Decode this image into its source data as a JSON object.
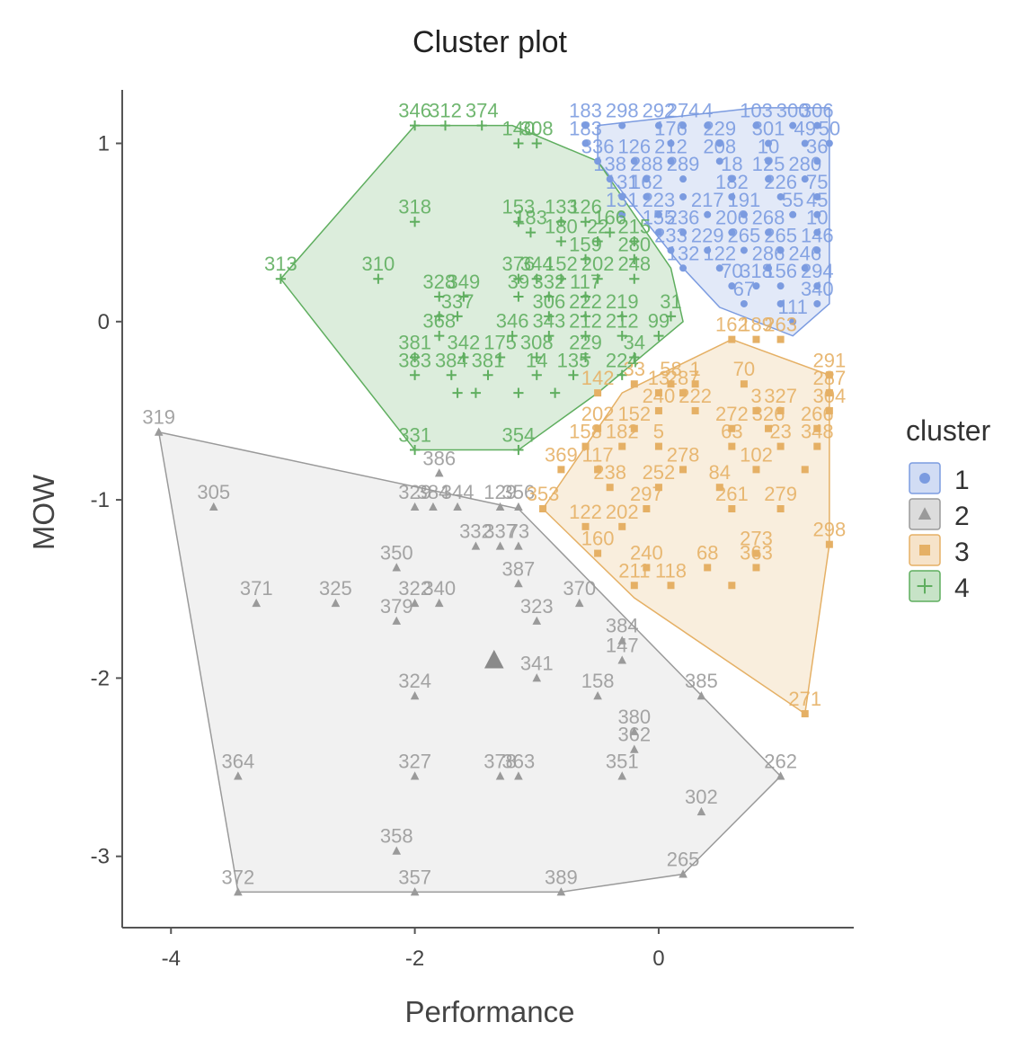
{
  "chart_data": {
    "type": "scatter",
    "title": "Cluster plot",
    "xlabel": "Performance",
    "ylabel": "MOW",
    "xlim": [
      -4.4,
      1.6
    ],
    "ylim": [
      -3.4,
      1.3
    ],
    "x_ticks": [
      "-4",
      "-2",
      "0"
    ],
    "x_tick_values": [
      -4,
      -2,
      0
    ],
    "y_ticks": [
      "1",
      "0",
      "-1",
      "-2",
      "-3"
    ],
    "y_tick_values": [
      1,
      0,
      -1,
      -2,
      -3
    ],
    "grid": false,
    "legend": {
      "title": "cluster",
      "placement": "right",
      "entries": [
        "1",
        "2",
        "3",
        "4"
      ]
    },
    "series": [
      {
        "name": "1",
        "color": "#7B9BE0",
        "marker": "circle",
        "hull": [
          [
            -0.5,
            1.1
          ],
          [
            0.8,
            1.2
          ],
          [
            1.4,
            1.2
          ],
          [
            1.4,
            0.1
          ],
          [
            1.1,
            -0.08
          ],
          [
            0.5,
            0.08
          ],
          [
            0.2,
            0.3
          ],
          [
            -0.5,
            0.9
          ]
        ],
        "points": [
          [
            -0.6,
            1.1,
            "183"
          ],
          [
            -0.3,
            1.1,
            "298"
          ],
          [
            0.0,
            1.1,
            "292"
          ],
          [
            0.2,
            1.1,
            "274"
          ],
          [
            0.4,
            1.1,
            "4"
          ],
          [
            0.8,
            1.1,
            "103"
          ],
          [
            1.1,
            1.1,
            "300"
          ],
          [
            1.3,
            1.1,
            "306"
          ],
          [
            -0.6,
            1.0,
            "183"
          ],
          [
            0.1,
            1.0,
            "176"
          ],
          [
            0.5,
            1.0,
            "229"
          ],
          [
            0.9,
            1.0,
            "301"
          ],
          [
            1.2,
            1.0,
            "49"
          ],
          [
            1.4,
            1.0,
            "50"
          ],
          [
            -0.5,
            0.9,
            "336"
          ],
          [
            -0.2,
            0.9,
            "126"
          ],
          [
            0.1,
            0.9,
            "212"
          ],
          [
            0.5,
            0.9,
            "208"
          ],
          [
            0.9,
            0.9,
            "10"
          ],
          [
            1.3,
            0.9,
            "36"
          ],
          [
            -0.4,
            0.8,
            "138"
          ],
          [
            -0.1,
            0.8,
            "288"
          ],
          [
            0.2,
            0.8,
            "289"
          ],
          [
            0.6,
            0.8,
            "18"
          ],
          [
            0.9,
            0.8,
            "125"
          ],
          [
            1.2,
            0.8,
            "280"
          ],
          [
            -0.3,
            0.7,
            "131"
          ],
          [
            -0.1,
            0.7,
            "162"
          ],
          [
            0.2,
            0.7,
            ""
          ],
          [
            0.6,
            0.7,
            "182"
          ],
          [
            1.0,
            0.7,
            "226"
          ],
          [
            1.3,
            0.7,
            "75"
          ],
          [
            -0.3,
            0.6,
            "131"
          ],
          [
            0.0,
            0.6,
            "223"
          ],
          [
            0.4,
            0.6,
            "217"
          ],
          [
            0.7,
            0.6,
            "191"
          ],
          [
            1.1,
            0.6,
            "55"
          ],
          [
            1.3,
            0.6,
            "45"
          ],
          [
            0.0,
            0.5,
            "155"
          ],
          [
            0.2,
            0.5,
            "236"
          ],
          [
            0.6,
            0.5,
            "206"
          ],
          [
            0.9,
            0.5,
            "268"
          ],
          [
            1.3,
            0.5,
            "10"
          ],
          [
            0.1,
            0.4,
            "233"
          ],
          [
            0.4,
            0.4,
            "229"
          ],
          [
            0.7,
            0.4,
            "265"
          ],
          [
            1.0,
            0.4,
            "265"
          ],
          [
            1.3,
            0.4,
            "146"
          ],
          [
            0.2,
            0.3,
            "132"
          ],
          [
            0.5,
            0.3,
            "122"
          ],
          [
            0.9,
            0.3,
            "286"
          ],
          [
            1.2,
            0.3,
            "246"
          ],
          [
            0.6,
            0.2,
            "70"
          ],
          [
            0.8,
            0.2,
            "318"
          ],
          [
            1.0,
            0.2,
            "156"
          ],
          [
            1.3,
            0.2,
            "294"
          ],
          [
            0.7,
            0.1,
            "67"
          ],
          [
            1.0,
            0.1,
            ""
          ],
          [
            1.3,
            0.1,
            "340"
          ],
          [
            1.1,
            0.0,
            "111"
          ]
        ]
      },
      {
        "name": "2",
        "color": "#9A9A9A",
        "marker": "triangle",
        "centroid": [
          -1.35,
          -1.9
        ],
        "hull": [
          [
            -4.1,
            -0.62
          ],
          [
            -1.15,
            -1.05
          ],
          [
            1.0,
            -2.55
          ],
          [
            0.2,
            -3.1
          ],
          [
            -0.8,
            -3.2
          ],
          [
            -3.45,
            -3.2
          ]
        ],
        "points": [
          [
            -4.1,
            -0.62,
            "319"
          ],
          [
            -3.65,
            -1.04,
            "305"
          ],
          [
            -2.0,
            -1.04,
            "329"
          ],
          [
            -1.85,
            -1.04,
            "384"
          ],
          [
            -1.65,
            -1.04,
            "344"
          ],
          [
            -1.3,
            -1.04,
            "129"
          ],
          [
            -1.15,
            -1.04,
            "356"
          ],
          [
            -1.8,
            -0.85,
            "386"
          ],
          [
            -1.5,
            -1.26,
            "332"
          ],
          [
            -1.3,
            -1.26,
            "337"
          ],
          [
            -1.15,
            -1.26,
            "73"
          ],
          [
            -2.15,
            -1.38,
            "350"
          ],
          [
            -1.15,
            -1.47,
            "387"
          ],
          [
            -3.3,
            -1.58,
            "371"
          ],
          [
            -2.65,
            -1.58,
            "325"
          ],
          [
            -2.0,
            -1.58,
            "322"
          ],
          [
            -1.8,
            -1.58,
            "340"
          ],
          [
            -2.15,
            -1.68,
            "379"
          ],
          [
            -0.65,
            -1.58,
            "370"
          ],
          [
            -1.0,
            -1.68,
            "323"
          ],
          [
            -0.3,
            -1.79,
            "384"
          ],
          [
            -0.3,
            -1.9,
            "147"
          ],
          [
            -1.0,
            -2.0,
            "341"
          ],
          [
            -2.0,
            -2.1,
            "324"
          ],
          [
            -0.5,
            -2.1,
            "158"
          ],
          [
            0.35,
            -2.1,
            "385"
          ],
          [
            -0.2,
            -2.3,
            "380"
          ],
          [
            -0.2,
            -2.4,
            "362"
          ],
          [
            -3.45,
            -2.55,
            "364"
          ],
          [
            -2.0,
            -2.55,
            "327"
          ],
          [
            -1.3,
            -2.55,
            "378"
          ],
          [
            -1.15,
            -2.55,
            "363"
          ],
          [
            -0.3,
            -2.55,
            "351"
          ],
          [
            1.0,
            -2.55,
            "262"
          ],
          [
            0.35,
            -2.75,
            "302"
          ],
          [
            -2.15,
            -2.97,
            "358"
          ],
          [
            0.2,
            -3.1,
            "265"
          ],
          [
            -3.45,
            -3.2,
            "372"
          ],
          [
            -2.0,
            -3.2,
            "357"
          ],
          [
            -0.8,
            -3.2,
            "389"
          ]
        ]
      },
      {
        "name": "3",
        "color": "#E5B065",
        "marker": "square",
        "hull": [
          [
            0.6,
            -0.1
          ],
          [
            1.4,
            -0.3
          ],
          [
            1.4,
            -1.25
          ],
          [
            1.2,
            -2.2
          ],
          [
            -0.2,
            -1.55
          ],
          [
            -0.95,
            -1.05
          ],
          [
            -0.3,
            -0.4
          ]
        ],
        "points": [
          [
            0.6,
            -0.1,
            "162"
          ],
          [
            0.8,
            -0.1,
            "189"
          ],
          [
            1.0,
            -0.1,
            "263"
          ],
          [
            1.4,
            -0.3,
            "291"
          ],
          [
            -0.2,
            -0.35,
            "33"
          ],
          [
            0.1,
            -0.35,
            "58"
          ],
          [
            0.3,
            -0.35,
            "1"
          ],
          [
            0.7,
            -0.35,
            "70"
          ],
          [
            -0.5,
            -0.4,
            "142"
          ],
          [
            0.0,
            -0.4,
            "13"
          ],
          [
            0.2,
            -0.4,
            "287"
          ],
          [
            1.4,
            -0.4,
            "287"
          ],
          [
            0.0,
            -0.5,
            "240"
          ],
          [
            0.3,
            -0.5,
            "222"
          ],
          [
            0.8,
            -0.5,
            "3"
          ],
          [
            1.0,
            -0.5,
            "327"
          ],
          [
            1.4,
            -0.5,
            "304"
          ],
          [
            -0.5,
            -0.6,
            "202"
          ],
          [
            -0.2,
            -0.6,
            "152"
          ],
          [
            0.6,
            -0.6,
            "272"
          ],
          [
            0.9,
            -0.6,
            "326"
          ],
          [
            1.3,
            -0.6,
            "266"
          ],
          [
            -0.6,
            -0.7,
            "158"
          ],
          [
            -0.3,
            -0.7,
            "182"
          ],
          [
            0.0,
            -0.7,
            "5"
          ],
          [
            0.6,
            -0.7,
            "63"
          ],
          [
            1.0,
            -0.7,
            "23"
          ],
          [
            1.3,
            -0.7,
            "348"
          ],
          [
            -0.8,
            -0.83,
            "369"
          ],
          [
            -0.5,
            -0.83,
            "117"
          ],
          [
            0.2,
            -0.83,
            "278"
          ],
          [
            0.8,
            -0.83,
            "102"
          ],
          [
            1.2,
            -0.83,
            ""
          ],
          [
            -0.4,
            -0.93,
            "238"
          ],
          [
            0.0,
            -0.93,
            "252"
          ],
          [
            0.5,
            -0.93,
            "84"
          ],
          [
            -0.95,
            -1.05,
            "353"
          ],
          [
            -0.1,
            -1.05,
            "297"
          ],
          [
            0.6,
            -1.05,
            "261"
          ],
          [
            1.0,
            -1.05,
            "279"
          ],
          [
            -0.6,
            -1.15,
            "122"
          ],
          [
            -0.3,
            -1.15,
            "202"
          ],
          [
            1.4,
            -1.25,
            "298"
          ],
          [
            -0.5,
            -1.3,
            "160"
          ],
          [
            0.8,
            -1.3,
            "273"
          ],
          [
            -0.1,
            -1.38,
            "240"
          ],
          [
            0.4,
            -1.38,
            "68"
          ],
          [
            0.8,
            -1.38,
            "363"
          ],
          [
            -0.2,
            -1.48,
            "211"
          ],
          [
            0.1,
            -1.48,
            "118"
          ],
          [
            0.6,
            -1.48,
            ""
          ],
          [
            1.2,
            -2.2,
            "271"
          ]
        ]
      },
      {
        "name": "4",
        "color": "#5FAE5F",
        "marker": "plus",
        "hull": [
          [
            -2.0,
            1.1
          ],
          [
            -1.2,
            1.1
          ],
          [
            -0.5,
            0.9
          ],
          [
            0.1,
            0.3
          ],
          [
            0.2,
            0.0
          ],
          [
            -0.5,
            -0.4
          ],
          [
            -1.15,
            -0.72
          ],
          [
            -2.0,
            -0.72
          ],
          [
            -3.1,
            0.24
          ]
        ],
        "points": [
          [
            -2.0,
            1.1,
            "346"
          ],
          [
            -1.75,
            1.1,
            "312"
          ],
          [
            -1.45,
            1.1,
            "374"
          ],
          [
            -1.15,
            1.0,
            "140"
          ],
          [
            -1.0,
            1.0,
            "308"
          ],
          [
            -2.0,
            0.56,
            "318"
          ],
          [
            -1.15,
            0.56,
            "153"
          ],
          [
            -0.8,
            0.56,
            "133"
          ],
          [
            -0.6,
            0.56,
            "126"
          ],
          [
            -1.05,
            0.5,
            "183"
          ],
          [
            -0.4,
            0.5,
            "166"
          ],
          [
            -0.8,
            0.45,
            "180"
          ],
          [
            -0.5,
            0.45,
            "22"
          ],
          [
            -0.2,
            0.45,
            "215"
          ],
          [
            -0.6,
            0.35,
            "159"
          ],
          [
            -0.2,
            0.35,
            "280"
          ],
          [
            -3.1,
            0.24,
            "313"
          ],
          [
            -2.3,
            0.24,
            "310"
          ],
          [
            -1.15,
            0.24,
            "376"
          ],
          [
            -1.0,
            0.24,
            "344"
          ],
          [
            -0.8,
            0.24,
            "152"
          ],
          [
            -0.5,
            0.24,
            "202"
          ],
          [
            -0.2,
            0.24,
            "248"
          ],
          [
            -1.8,
            0.14,
            "328"
          ],
          [
            -1.6,
            0.14,
            "349"
          ],
          [
            -1.15,
            0.14,
            "39"
          ],
          [
            -0.9,
            0.14,
            "332"
          ],
          [
            -0.6,
            0.14,
            "117"
          ],
          [
            -1.8,
            0.03,
            ""
          ],
          [
            -1.65,
            0.03,
            "337"
          ],
          [
            -0.9,
            0.03,
            "306"
          ],
          [
            -0.6,
            0.03,
            "222"
          ],
          [
            -0.3,
            0.03,
            "219"
          ],
          [
            0.1,
            0.03,
            "31"
          ],
          [
            -1.8,
            -0.08,
            "368"
          ],
          [
            -1.2,
            -0.08,
            "346"
          ],
          [
            -0.9,
            -0.08,
            "343"
          ],
          [
            -0.6,
            -0.08,
            "212"
          ],
          [
            -0.3,
            -0.08,
            "212"
          ],
          [
            0.0,
            -0.08,
            "99"
          ],
          [
            -2.0,
            -0.2,
            "381"
          ],
          [
            -1.6,
            -0.2,
            "342"
          ],
          [
            -1.3,
            -0.2,
            "175"
          ],
          [
            -1.0,
            -0.2,
            "308"
          ],
          [
            -0.6,
            -0.2,
            "229"
          ],
          [
            -0.2,
            -0.2,
            "34"
          ],
          [
            -2.0,
            -0.3,
            "383"
          ],
          [
            -1.7,
            -0.3,
            "384"
          ],
          [
            -1.4,
            -0.3,
            "381"
          ],
          [
            -1.0,
            -0.3,
            "14"
          ],
          [
            -0.7,
            -0.3,
            "135"
          ],
          [
            -0.3,
            -0.3,
            "224"
          ],
          [
            -1.65,
            -0.4,
            ""
          ],
          [
            -1.5,
            -0.4,
            ""
          ],
          [
            -1.15,
            -0.4,
            ""
          ],
          [
            -0.85,
            -0.4,
            ""
          ],
          [
            -2.0,
            -0.72,
            "331"
          ],
          [
            -1.15,
            -0.72,
            "354"
          ]
        ]
      }
    ]
  }
}
